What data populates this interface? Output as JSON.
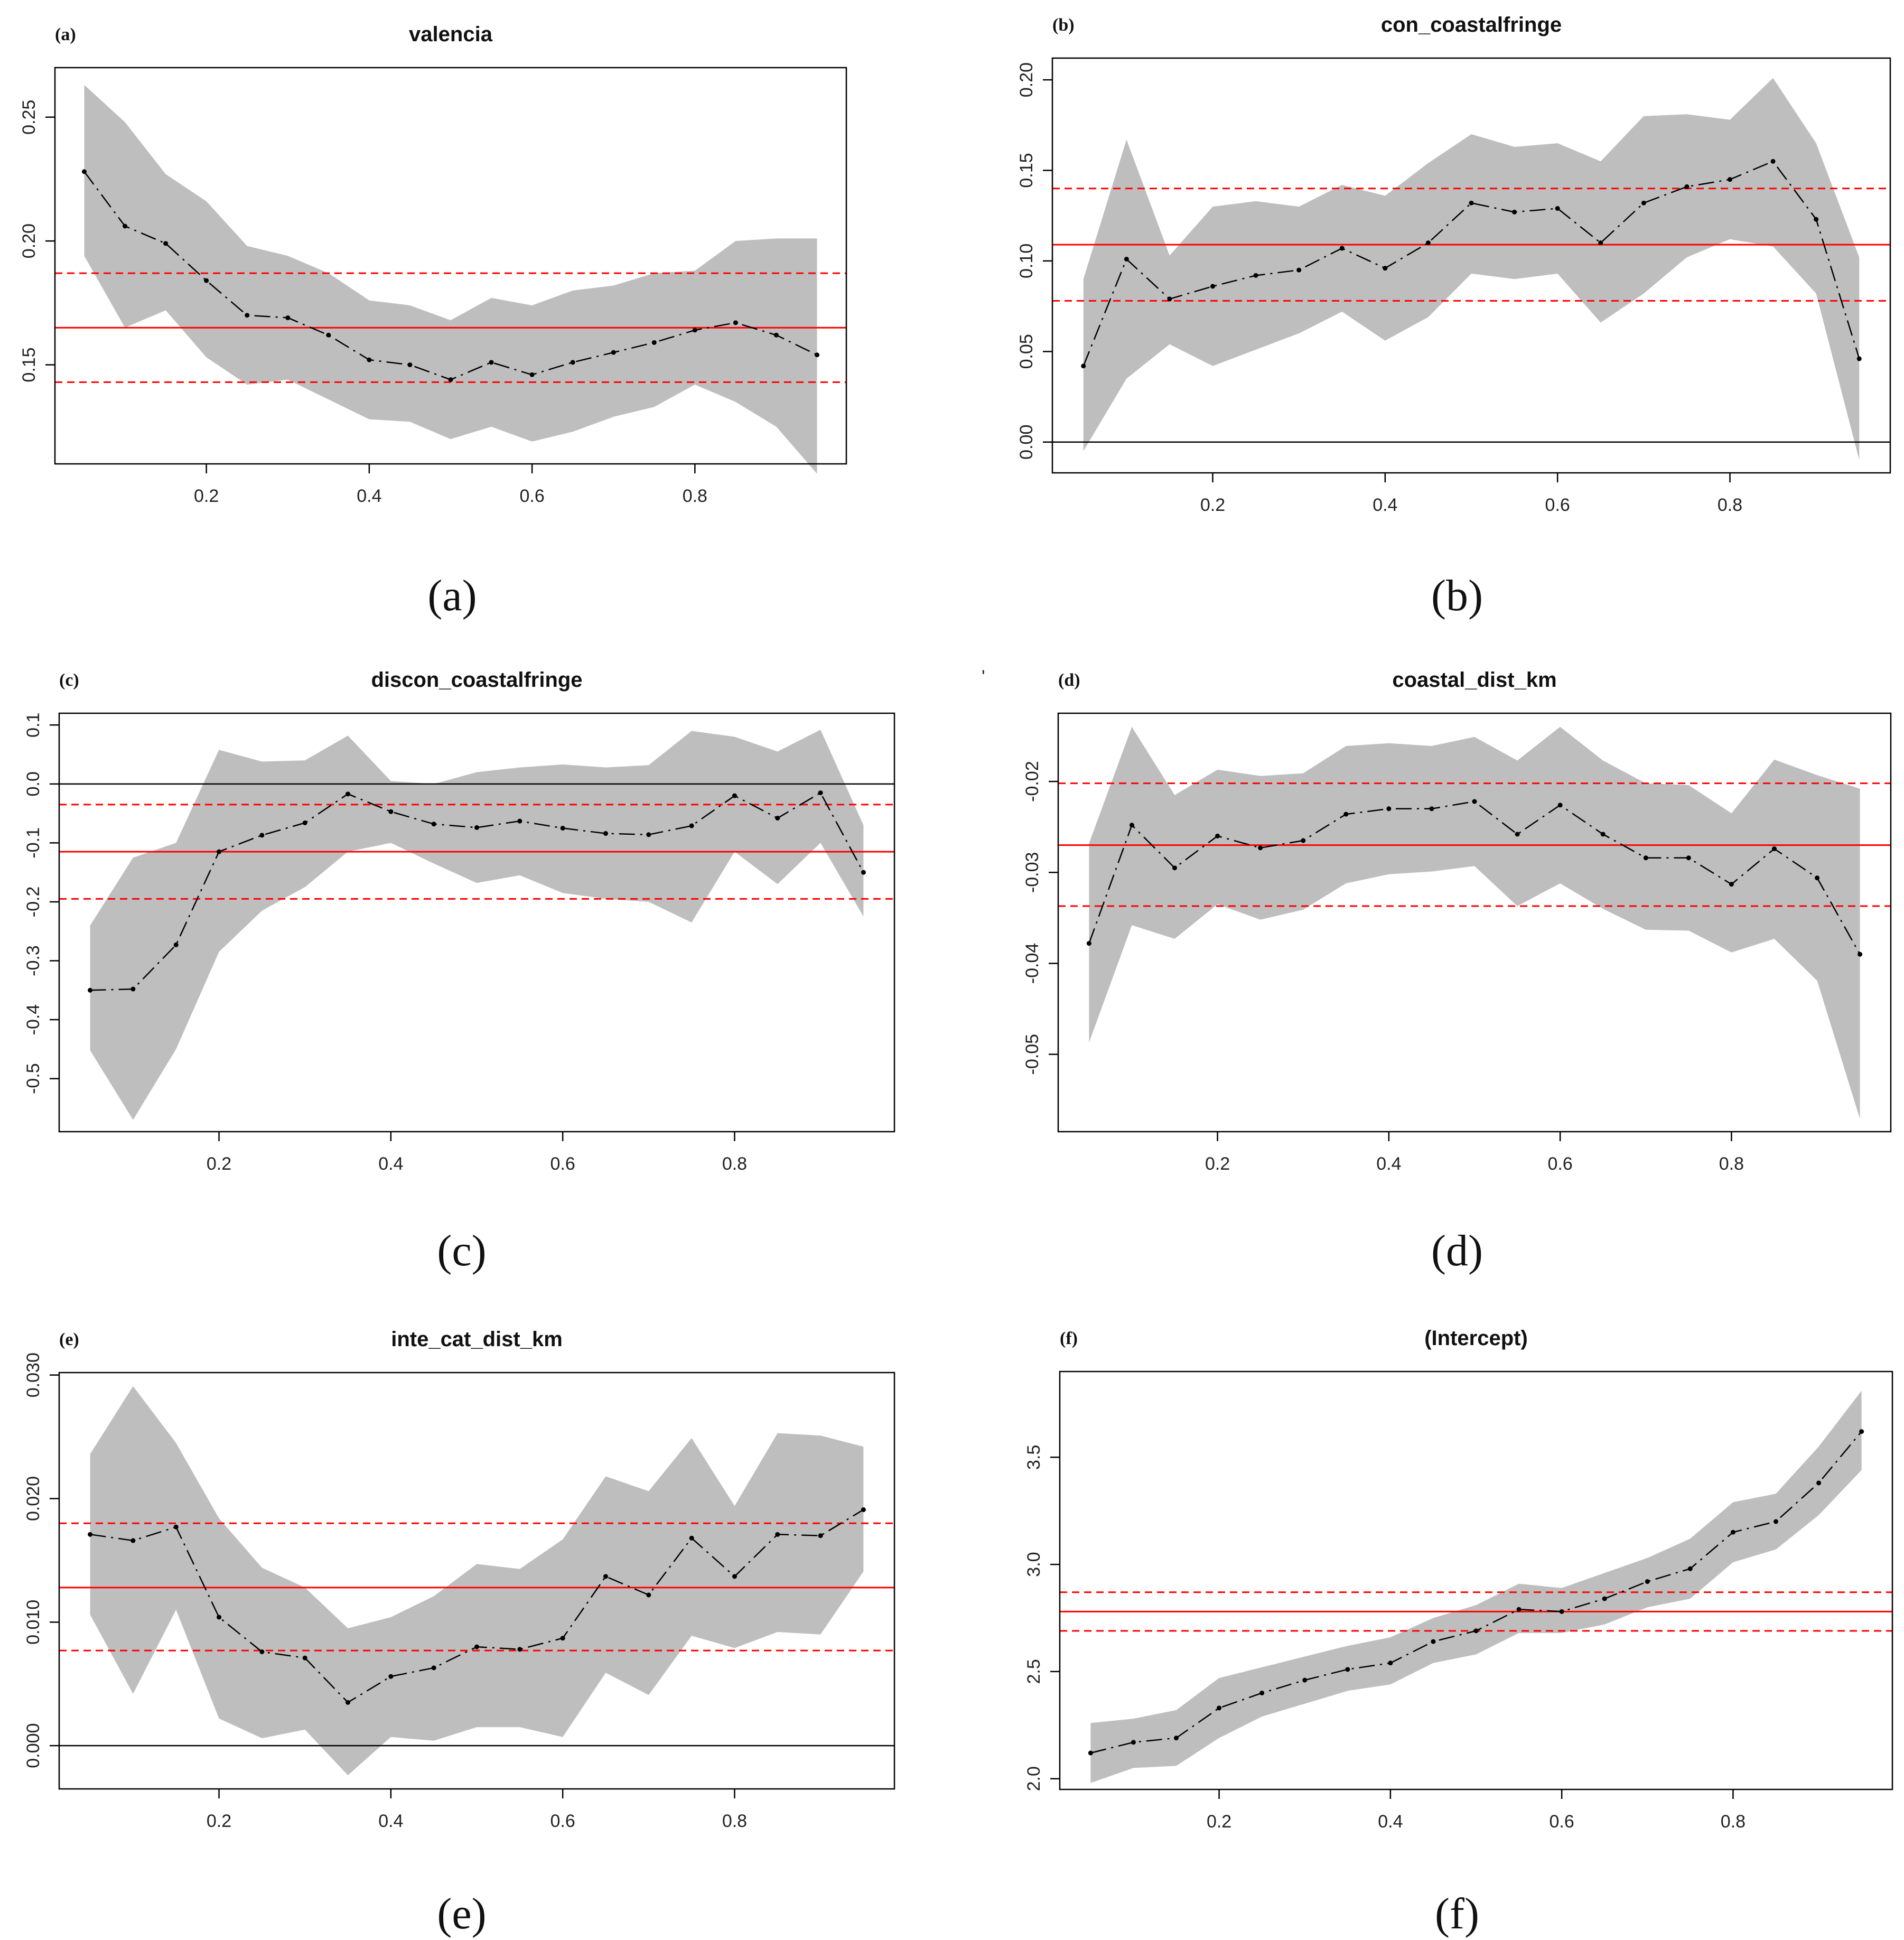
{
  "figure": {
    "stray_mark": "'"
  },
  "colors": {
    "band": "#bebebe",
    "ols": "#ff0000",
    "zero": "#000000",
    "line": "#000000"
  },
  "chart_data": [
    {
      "type": "line",
      "tag": "(a)",
      "caption": "(a)",
      "title": "valencia",
      "xlabel": "",
      "ylabel": "",
      "xlim": [
        0.05,
        0.95
      ],
      "ylim": [
        0.11,
        0.27
      ],
      "xticks": [
        0.2,
        0.4,
        0.6,
        0.8
      ],
      "xtick_labels": [
        "0.2",
        "0.4",
        "0.6",
        "0.8"
      ],
      "yticks": [
        0.15,
        0.2,
        0.25
      ],
      "ytick_labels": [
        "0.15",
        "0.20",
        "0.25"
      ],
      "zero_line": false,
      "ols": {
        "estimate": 0.165,
        "lower": 0.143,
        "upper": 0.187
      },
      "x": [
        0.05,
        0.1,
        0.15,
        0.2,
        0.25,
        0.3,
        0.35,
        0.4,
        0.45,
        0.5,
        0.55,
        0.6,
        0.65,
        0.7,
        0.75,
        0.8,
        0.85,
        0.9,
        0.95
      ],
      "series": [
        {
          "name": "quantile estimate",
          "values": [
            0.228,
            0.206,
            0.199,
            0.184,
            0.17,
            0.169,
            0.162,
            0.152,
            0.15,
            0.144,
            0.151,
            0.146,
            0.151,
            0.155,
            0.159,
            0.164,
            0.167,
            0.162,
            0.154
          ]
        },
        {
          "name": "upper bound",
          "values": [
            0.263,
            0.248,
            0.227,
            0.216,
            0.198,
            0.194,
            0.187,
            0.176,
            0.174,
            0.168,
            0.177,
            0.174,
            0.18,
            0.182,
            0.187,
            0.188,
            0.2,
            0.201,
            0.201
          ]
        },
        {
          "name": "lower bound",
          "values": [
            0.194,
            0.165,
            0.172,
            0.153,
            0.142,
            0.144,
            0.136,
            0.128,
            0.127,
            0.12,
            0.125,
            0.119,
            0.123,
            0.129,
            0.133,
            0.142,
            0.135,
            0.125,
            0.106
          ]
        }
      ]
    },
    {
      "type": "line",
      "tag": "(b)",
      "caption": "(b)",
      "title": "con_coastalfringe",
      "xlabel": "",
      "ylabel": "",
      "xlim": [
        0.05,
        0.95
      ],
      "ylim": [
        -0.017,
        0.212
      ],
      "xticks": [
        0.2,
        0.4,
        0.6,
        0.8
      ],
      "xtick_labels": [
        "0.2",
        "0.4",
        "0.6",
        "0.8"
      ],
      "yticks": [
        0.0,
        0.05,
        0.1,
        0.15,
        0.2
      ],
      "ytick_labels": [
        "0.00",
        "0.05",
        "0.10",
        "0.15",
        "0.20"
      ],
      "zero_line": true,
      "ols": {
        "estimate": 0.109,
        "lower": 0.078,
        "upper": 0.14
      },
      "x": [
        0.05,
        0.1,
        0.15,
        0.2,
        0.25,
        0.3,
        0.35,
        0.4,
        0.45,
        0.5,
        0.55,
        0.6,
        0.65,
        0.7,
        0.75,
        0.8,
        0.85,
        0.9,
        0.95
      ],
      "series": [
        {
          "name": "quantile estimate",
          "values": [
            0.042,
            0.101,
            0.079,
            0.086,
            0.092,
            0.095,
            0.107,
            0.096,
            0.11,
            0.132,
            0.127,
            0.129,
            0.11,
            0.132,
            0.141,
            0.145,
            0.155,
            0.123,
            0.046
          ]
        },
        {
          "name": "upper bound",
          "values": [
            0.09,
            0.167,
            0.103,
            0.13,
            0.133,
            0.13,
            0.142,
            0.136,
            0.154,
            0.17,
            0.163,
            0.165,
            0.155,
            0.18,
            0.181,
            0.178,
            0.201,
            0.165,
            0.102
          ]
        },
        {
          "name": "lower bound",
          "values": [
            -0.005,
            0.035,
            0.054,
            0.042,
            0.051,
            0.06,
            0.072,
            0.056,
            0.069,
            0.093,
            0.09,
            0.093,
            0.066,
            0.082,
            0.102,
            0.112,
            0.108,
            0.082,
            -0.01
          ]
        }
      ]
    },
    {
      "type": "line",
      "tag": "(c)",
      "caption": "(c)",
      "title": "discon_coastalfringe",
      "xlabel": "",
      "ylabel": "",
      "xlim": [
        0.05,
        0.95
      ],
      "ylim": [
        -0.59,
        0.12
      ],
      "xticks": [
        0.2,
        0.4,
        0.6,
        0.8
      ],
      "xtick_labels": [
        "0.2",
        "0.4",
        "0.6",
        "0.8"
      ],
      "yticks": [
        -0.5,
        -0.4,
        -0.3,
        -0.2,
        -0.1,
        0.0,
        0.1
      ],
      "ytick_labels": [
        "-0.5",
        "-0.4",
        "-0.3",
        "-0.2",
        "-0.1",
        "0.0",
        "0.1"
      ],
      "zero_line": true,
      "ols": {
        "estimate": -0.115,
        "lower": -0.195,
        "upper": -0.035
      },
      "x": [
        0.05,
        0.1,
        0.15,
        0.2,
        0.25,
        0.3,
        0.35,
        0.4,
        0.45,
        0.5,
        0.55,
        0.6,
        0.65,
        0.7,
        0.75,
        0.8,
        0.85,
        0.9,
        0.95
      ],
      "series": [
        {
          "name": "quantile estimate",
          "values": [
            -0.35,
            -0.348,
            -0.273,
            -0.115,
            -0.087,
            -0.066,
            -0.017,
            -0.047,
            -0.068,
            -0.074,
            -0.063,
            -0.075,
            -0.084,
            -0.086,
            -0.071,
            -0.02,
            -0.058,
            -0.015,
            -0.15
          ]
        },
        {
          "name": "upper bound",
          "values": [
            -0.24,
            -0.125,
            -0.1,
            0.058,
            0.038,
            0.04,
            0.082,
            0.005,
            0.0,
            0.02,
            0.028,
            0.033,
            0.028,
            0.032,
            0.09,
            0.08,
            0.055,
            0.092,
            -0.07
          ]
        },
        {
          "name": "lower bound",
          "values": [
            -0.452,
            -0.57,
            -0.45,
            -0.285,
            -0.215,
            -0.175,
            -0.115,
            -0.1,
            -0.135,
            -0.168,
            -0.155,
            -0.185,
            -0.195,
            -0.2,
            -0.235,
            -0.115,
            -0.17,
            -0.1,
            -0.225
          ]
        }
      ]
    },
    {
      "type": "line",
      "tag": "(d)",
      "caption": "(d)",
      "title": "coastal_dist_km",
      "xlabel": "",
      "ylabel": "",
      "xlim": [
        0.05,
        0.95
      ],
      "ylim": [
        -0.0585,
        -0.0125
      ],
      "xticks": [
        0.2,
        0.4,
        0.6,
        0.8
      ],
      "xtick_labels": [
        "0.2",
        "0.4",
        "0.6",
        "0.8"
      ],
      "yticks": [
        -0.05,
        -0.04,
        -0.03,
        -0.02
      ],
      "ytick_labels": [
        "-0.05",
        "-0.04",
        "-0.03",
        "-0.02"
      ],
      "zero_line": false,
      "ols": {
        "estimate": -0.027,
        "lower": -0.0337,
        "upper": -0.0202
      },
      "x": [
        0.05,
        0.1,
        0.15,
        0.2,
        0.25,
        0.3,
        0.35,
        0.4,
        0.45,
        0.5,
        0.55,
        0.6,
        0.65,
        0.7,
        0.75,
        0.8,
        0.85,
        0.9,
        0.95
      ],
      "series": [
        {
          "name": "quantile estimate",
          "values": [
            -0.0378,
            -0.0248,
            -0.0295,
            -0.026,
            -0.0273,
            -0.0265,
            -0.0236,
            -0.023,
            -0.023,
            -0.0222,
            -0.0258,
            -0.0226,
            -0.0258,
            -0.0284,
            -0.0284,
            -0.0313,
            -0.0274,
            -0.0306,
            -0.039
          ]
        },
        {
          "name": "upper bound",
          "values": [
            -0.0268,
            -0.014,
            -0.0215,
            -0.0187,
            -0.0194,
            -0.0191,
            -0.0161,
            -0.0158,
            -0.0161,
            -0.0151,
            -0.0177,
            -0.014,
            -0.0177,
            -0.0202,
            -0.0204,
            -0.0235,
            -0.0176,
            -0.0193,
            -0.0208
          ]
        },
        {
          "name": "lower bound",
          "values": [
            -0.0487,
            -0.0358,
            -0.0373,
            -0.0335,
            -0.0352,
            -0.0341,
            -0.0312,
            -0.0302,
            -0.0299,
            -0.0293,
            -0.0337,
            -0.0312,
            -0.034,
            -0.0363,
            -0.0364,
            -0.0388,
            -0.0373,
            -0.0419,
            -0.0571
          ]
        }
      ]
    },
    {
      "type": "line",
      "tag": "(e)",
      "caption": "(e)",
      "title": "inte_cat_dist_km",
      "xlabel": "",
      "ylabel": "",
      "xlim": [
        0.05,
        0.95
      ],
      "ylim": [
        -0.0035,
        0.0302
      ],
      "xticks": [
        0.2,
        0.4,
        0.6,
        0.8
      ],
      "xtick_labels": [
        "0.2",
        "0.4",
        "0.6",
        "0.8"
      ],
      "yticks": [
        0.0,
        0.01,
        0.02,
        0.03
      ],
      "ytick_labels": [
        "0.000",
        "0.010",
        "0.020",
        "0.030"
      ],
      "zero_line": true,
      "ols": {
        "estimate": 0.0128,
        "lower": 0.0077,
        "upper": 0.018
      },
      "x": [
        0.05,
        0.1,
        0.15,
        0.2,
        0.25,
        0.3,
        0.35,
        0.4,
        0.45,
        0.5,
        0.55,
        0.6,
        0.65,
        0.7,
        0.75,
        0.8,
        0.85,
        0.9,
        0.95
      ],
      "series": [
        {
          "name": "quantile estimate",
          "values": [
            0.0171,
            0.0166,
            0.0177,
            0.0104,
            0.0076,
            0.0071,
            0.0035,
            0.0056,
            0.0063,
            0.008,
            0.0078,
            0.0087,
            0.0137,
            0.0122,
            0.0168,
            0.0137,
            0.0171,
            0.017,
            0.0191
          ]
        },
        {
          "name": "upper bound",
          "values": [
            0.0236,
            0.0291,
            0.0245,
            0.0184,
            0.0144,
            0.0128,
            0.0095,
            0.0104,
            0.0121,
            0.0147,
            0.0143,
            0.0167,
            0.0218,
            0.0206,
            0.0249,
            0.0194,
            0.0253,
            0.0251,
            0.0242
          ]
        },
        {
          "name": "lower bound",
          "values": [
            0.0106,
            0.0042,
            0.011,
            0.0022,
            0.0006,
            0.0013,
            -0.0024,
            0.0007,
            0.0004,
            0.0015,
            0.0015,
            0.0007,
            0.0059,
            0.0041,
            0.0089,
            0.0079,
            0.0092,
            0.009,
            0.0141
          ]
        }
      ]
    },
    {
      "type": "line",
      "tag": "(f)",
      "caption": "(f)",
      "title": "(Intercept)",
      "xlabel": "",
      "ylabel": "",
      "xlim": [
        0.05,
        0.95
      ],
      "ylim": [
        1.95,
        3.9
      ],
      "xticks": [
        0.2,
        0.4,
        0.6,
        0.8
      ],
      "xtick_labels": [
        "0.2",
        "0.4",
        "0.6",
        "0.8"
      ],
      "yticks": [
        2.0,
        2.5,
        3.0,
        3.5
      ],
      "ytick_labels": [
        "2.0",
        "2.5",
        "3.0",
        "3.5"
      ],
      "zero_line": false,
      "ols": {
        "estimate": 2.78,
        "lower": 2.69,
        "upper": 2.87
      },
      "x": [
        0.05,
        0.1,
        0.15,
        0.2,
        0.25,
        0.3,
        0.35,
        0.4,
        0.45,
        0.5,
        0.55,
        0.6,
        0.65,
        0.7,
        0.75,
        0.8,
        0.85,
        0.9,
        0.95
      ],
      "series": [
        {
          "name": "quantile estimate",
          "values": [
            2.12,
            2.17,
            2.19,
            2.33,
            2.4,
            2.46,
            2.51,
            2.54,
            2.64,
            2.69,
            2.79,
            2.78,
            2.84,
            2.92,
            2.98,
            3.15,
            3.2,
            3.38,
            3.62
          ]
        },
        {
          "name": "upper bound",
          "values": [
            2.26,
            2.28,
            2.32,
            2.47,
            2.52,
            2.57,
            2.62,
            2.66,
            2.75,
            2.81,
            2.91,
            2.89,
            2.96,
            3.03,
            3.12,
            3.29,
            3.33,
            3.55,
            3.81
          ]
        },
        {
          "name": "lower bound",
          "values": [
            1.98,
            2.05,
            2.06,
            2.19,
            2.29,
            2.35,
            2.41,
            2.44,
            2.54,
            2.58,
            2.68,
            2.68,
            2.72,
            2.8,
            2.84,
            3.01,
            3.07,
            3.23,
            3.44
          ]
        }
      ]
    }
  ]
}
